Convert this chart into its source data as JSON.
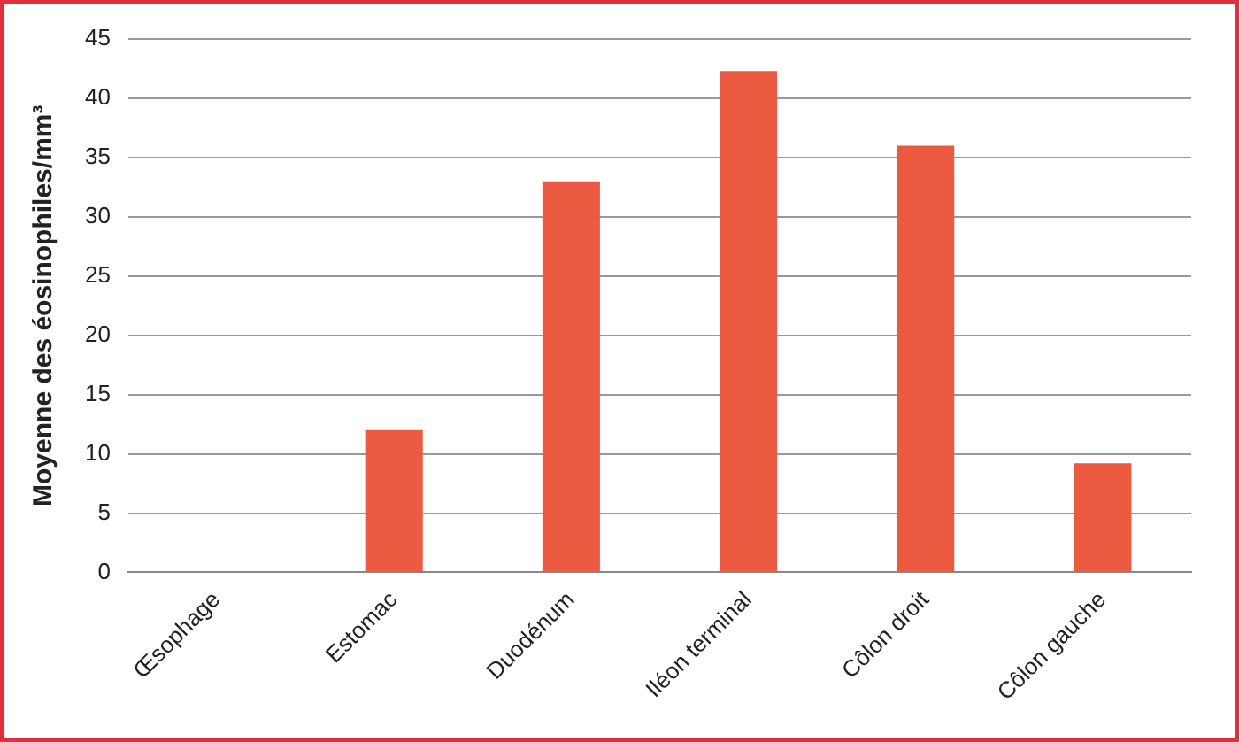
{
  "chart_data": {
    "type": "bar",
    "ylabel": "Moyenne des éosinophiles/mm³",
    "categories": [
      "Œsophage",
      "Estomac",
      "Duodénum",
      "Iléon terminal",
      "Côlon droit",
      "Côlon gauche"
    ],
    "values": [
      0,
      12,
      33,
      42.3,
      36,
      9.2
    ],
    "color": "#eb5a41",
    "ylim": [
      0,
      45
    ],
    "yticks": [
      0,
      5,
      10,
      15,
      20,
      25,
      30,
      35,
      40,
      45
    ],
    "grid": "y",
    "legend": false
  }
}
